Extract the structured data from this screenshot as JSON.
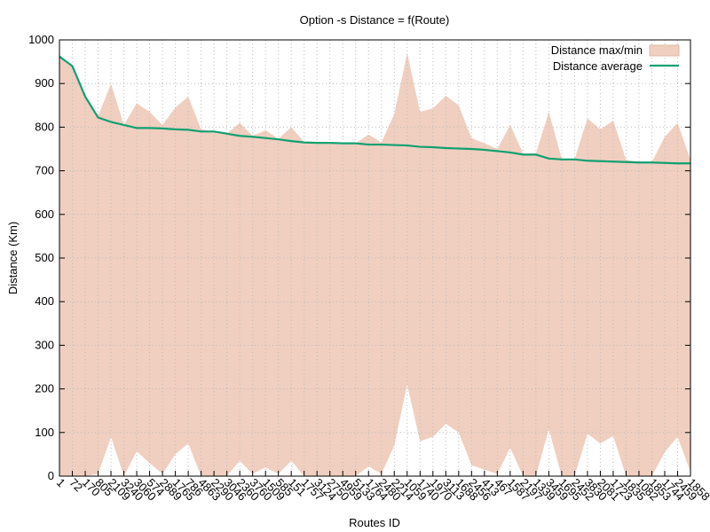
{
  "chart_data": {
    "type": "band_line",
    "title": "Option -s Distance = f(Route)",
    "x_label": "Routes ID",
    "y_label": "Distance (Km)",
    "categories": [
      "1",
      "72",
      "170",
      "805",
      "2109",
      "3240",
      "3060",
      "574",
      "2889",
      "1765",
      "786",
      "4863",
      "2290",
      "3046",
      "2360",
      "3760",
      "1509",
      "585",
      "151",
      "1757",
      "3124",
      "2750",
      "4959",
      "5133",
      "1764",
      "2480",
      "2214",
      "1059",
      "1740",
      "1970",
      "3113",
      "1688",
      "2456",
      "413",
      "467",
      "1587",
      "2197",
      "1339",
      "3459",
      "1695",
      "2452",
      "3830",
      "2081",
      "1723",
      "1835",
      "1082",
      "1853",
      "1744",
      "2459",
      "1858"
    ],
    "series": [
      {
        "name": "Distance max/min",
        "color": "#f0cfc0",
        "max": [
          960,
          940,
          870,
          825,
          900,
          805,
          855,
          835,
          805,
          845,
          870,
          795,
          790,
          785,
          810,
          780,
          793,
          773,
          800,
          766,
          765,
          764,
          765,
          763,
          783,
          765,
          830,
          970,
          835,
          843,
          872,
          850,
          775,
          763,
          750,
          805,
          740,
          740,
          835,
          728,
          727,
          820,
          795,
          815,
          725,
          720,
          720,
          778,
          810,
          725
        ],
        "min": [
          0,
          0,
          0,
          5,
          90,
          0,
          57,
          30,
          5,
          50,
          75,
          0,
          0,
          0,
          35,
          5,
          20,
          5,
          35,
          0,
          0,
          0,
          0,
          0,
          22,
          5,
          70,
          210,
          80,
          90,
          120,
          100,
          25,
          15,
          5,
          65,
          0,
          0,
          108,
          0,
          0,
          97,
          75,
          92,
          0,
          0,
          0,
          55,
          90,
          10
        ]
      },
      {
        "name": "Distance average",
        "color": "#11a070",
        "values": [
          962,
          940,
          870,
          822,
          812,
          805,
          798,
          798,
          797,
          795,
          794,
          790,
          790,
          785,
          780,
          778,
          775,
          772,
          768,
          765,
          764,
          764,
          763,
          763,
          760,
          760,
          759,
          758,
          755,
          754,
          752,
          751,
          750,
          748,
          745,
          742,
          737,
          737,
          728,
          726,
          726,
          723,
          722,
          721,
          720,
          719,
          719,
          718,
          717,
          717
        ]
      }
    ],
    "ylim": [
      0,
      1000
    ],
    "yticks": [
      0,
      100,
      200,
      300,
      400,
      500,
      600,
      700,
      800,
      900,
      1000
    ],
    "grid": true,
    "legend": "top-right"
  }
}
